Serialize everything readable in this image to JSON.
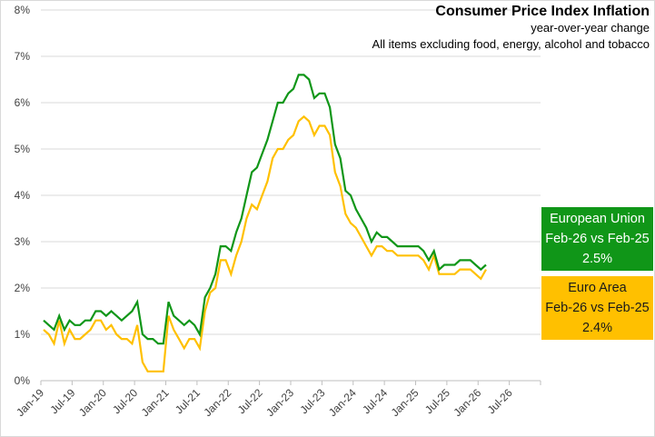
{
  "chart_data": {
    "type": "line",
    "title": "Consumer Price Index Inflation",
    "subtitle": "year-over-year change",
    "subtitle2": "All items excluding food, energy, alcohol and tobacco",
    "xlabel": "",
    "ylabel": "",
    "ylim": [
      0,
      8
    ],
    "y_ticks": [
      "0%",
      "1%",
      "2%",
      "3%",
      "4%",
      "5%",
      "6%",
      "7%",
      "8%"
    ],
    "x_tick_labels": [
      "Jan-19",
      "Jul-19",
      "Jan-20",
      "Jul-20",
      "Jan-21",
      "Jul-21",
      "Jan-22",
      "Jul-22",
      "Jan-23",
      "Jul-23",
      "Jan-24",
      "Jul-24",
      "Jan-25",
      "Jul-25",
      "Jan-26",
      "Jul-26"
    ],
    "x_start": "Jan-19",
    "x_end": "Feb-26",
    "x_axis_months_total": 96,
    "grid": true,
    "legend": "right",
    "series": [
      {
        "name": "European Union",
        "color": "#109618",
        "values": [
          1.3,
          1.2,
          1.1,
          1.4,
          1.1,
          1.3,
          1.2,
          1.2,
          1.3,
          1.3,
          1.5,
          1.5,
          1.4,
          1.5,
          1.4,
          1.3,
          1.4,
          1.5,
          1.7,
          1.0,
          0.9,
          0.9,
          0.8,
          0.8,
          1.7,
          1.4,
          1.3,
          1.2,
          1.3,
          1.2,
          1.0,
          1.8,
          2.0,
          2.3,
          2.9,
          2.9,
          2.8,
          3.2,
          3.5,
          4.0,
          4.5,
          4.6,
          4.9,
          5.2,
          5.6,
          6.0,
          6.0,
          6.2,
          6.3,
          6.6,
          6.6,
          6.5,
          6.1,
          6.2,
          6.2,
          5.9,
          5.1,
          4.8,
          4.1,
          4.0,
          3.7,
          3.5,
          3.3,
          3.0,
          3.2,
          3.1,
          3.1,
          3.0,
          2.9,
          2.9,
          2.9,
          2.9,
          2.9,
          2.8,
          2.6,
          2.8,
          2.4,
          2.5,
          2.5,
          2.5,
          2.6,
          2.6,
          2.6,
          2.5,
          2.4,
          2.5
        ]
      },
      {
        "name": "Euro Area",
        "color": "#ffc000",
        "values": [
          1.1,
          1.0,
          0.8,
          1.3,
          0.8,
          1.1,
          0.9,
          0.9,
          1.0,
          1.1,
          1.3,
          1.3,
          1.1,
          1.2,
          1.0,
          0.9,
          0.9,
          0.8,
          1.2,
          0.4,
          0.2,
          0.2,
          0.2,
          0.2,
          1.4,
          1.1,
          0.9,
          0.7,
          0.9,
          0.9,
          0.7,
          1.5,
          1.9,
          2.0,
          2.6,
          2.6,
          2.3,
          2.7,
          3.0,
          3.5,
          3.8,
          3.7,
          4.0,
          4.3,
          4.8,
          5.0,
          5.0,
          5.2,
          5.3,
          5.6,
          5.7,
          5.6,
          5.3,
          5.5,
          5.5,
          5.3,
          4.5,
          4.2,
          3.6,
          3.4,
          3.3,
          3.1,
          2.9,
          2.7,
          2.9,
          2.9,
          2.8,
          2.8,
          2.7,
          2.7,
          2.7,
          2.7,
          2.7,
          2.6,
          2.4,
          2.7,
          2.3,
          2.3,
          2.3,
          2.3,
          2.4,
          2.4,
          2.4,
          2.3,
          2.2,
          2.4
        ]
      }
    ],
    "callouts": [
      {
        "series": "European Union",
        "line1": "European Union",
        "line2": "Feb-26 vs Feb-25",
        "value": "2.5%",
        "color": "#109618"
      },
      {
        "series": "Euro Area",
        "line1": "Euro Area",
        "line2": "Feb-26 vs Feb-25",
        "value": "2.4%",
        "color": "#ffc000"
      }
    ]
  }
}
